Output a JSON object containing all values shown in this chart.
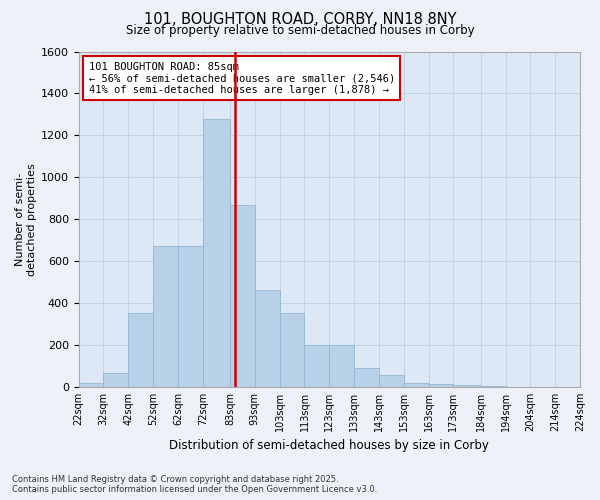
{
  "title1": "101, BOUGHTON ROAD, CORBY, NN18 8NY",
  "title2": "Size of property relative to semi-detached houses in Corby",
  "xlabel": "Distribution of semi-detached houses by size in Corby",
  "ylabel": "Number of semi-\ndetached properties",
  "annotation_title": "101 BOUGHTON ROAD: 85sqm",
  "annotation_line2": "← 56% of semi-detached houses are smaller (2,546)",
  "annotation_line3": "41% of semi-detached houses are larger (1,878) →",
  "footer1": "Contains HM Land Registry data © Crown copyright and database right 2025.",
  "footer2": "Contains public sector information licensed under the Open Government Licence v3.0.",
  "bin_labels": [
    "22sqm",
    "32sqm",
    "42sqm",
    "52sqm",
    "62sqm",
    "72sqm",
    "83sqm",
    "93sqm",
    "103sqm",
    "113sqm",
    "123sqm",
    "133sqm",
    "143sqm",
    "153sqm",
    "163sqm",
    "173sqm",
    "184sqm",
    "194sqm",
    "204sqm",
    "214sqm",
    "224sqm"
  ],
  "values": [
    20,
    65,
    355,
    670,
    670,
    1280,
    870,
    460,
    355,
    200,
    200,
    90,
    55,
    20,
    15,
    10,
    5,
    0,
    0,
    0
  ],
  "bar_color": "#b8d0e8",
  "highlight_color": "#cc0000",
  "annotation_box_color": "#cc0000",
  "bg_color": "#dce8f5",
  "fig_bg_color": "#eef2f8",
  "ylim": [
    0,
    1600
  ],
  "yticks": [
    0,
    200,
    400,
    600,
    800,
    1000,
    1200,
    1400,
    1600
  ],
  "property_sqm": 85,
  "bin_edges": [
    22,
    32,
    42,
    52,
    62,
    72,
    83,
    93,
    103,
    113,
    123,
    133,
    143,
    153,
    163,
    173,
    184,
    194,
    204,
    214,
    224
  ]
}
